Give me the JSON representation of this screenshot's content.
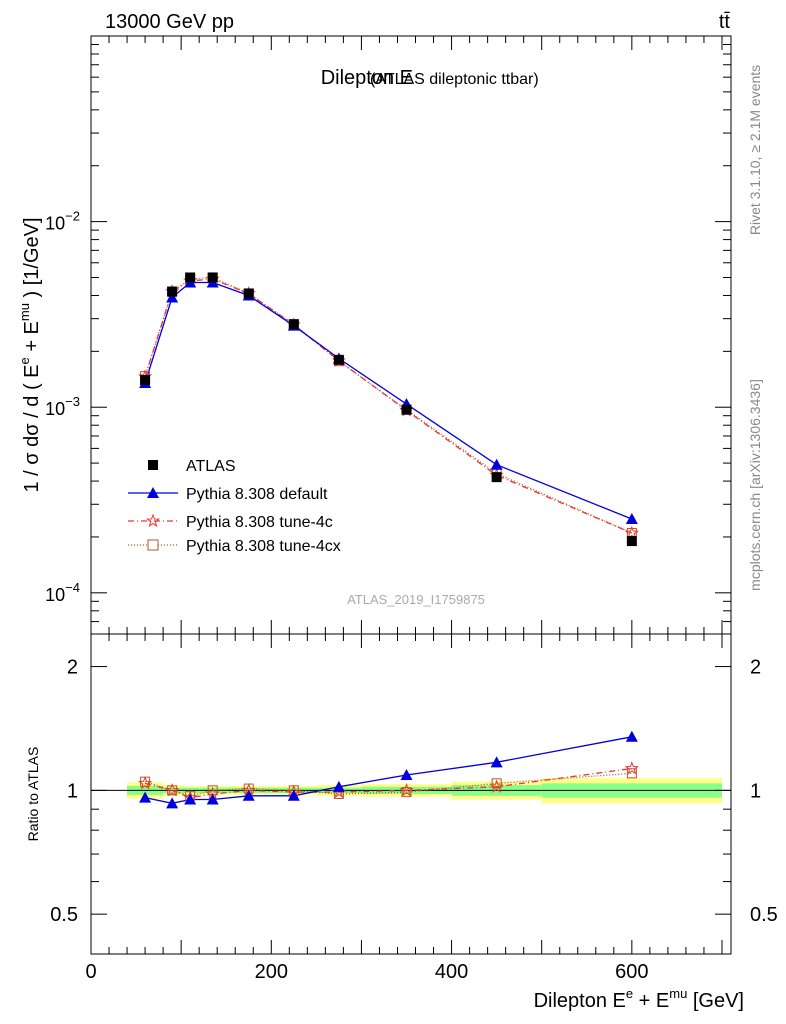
{
  "header": {
    "energy_label": "13000 GeV pp",
    "process_label": "tt̄"
  },
  "plot_title": {
    "main": "Dilepton E",
    "sub": "(ATLAS dileptonic ttbar)"
  },
  "side_labels": {
    "rivet": "Rivet 3.1.10, ≥ 2.1M events",
    "mcplots": "mcplots.cern.ch [arXiv:1306.3436]"
  },
  "watermark": "ATLAS_2019_I1759875",
  "colors": {
    "atlas": "#000000",
    "default": "#0000dd",
    "tune4c": "#ee3333",
    "tune4cx": "#bb5522",
    "band_inner": "#88ff88",
    "band_outer": "#ffff88"
  },
  "chart_data": [
    {
      "type": "line",
      "panel": "main",
      "ylabel_parts": {
        "a": "1 / σ  dσ / d ( E",
        "sup1": "e",
        "b": " + E",
        "sup2": "mu",
        "c": " ) [1/GeV]"
      },
      "xlim": [
        0,
        710
      ],
      "ylim": [
        6e-05,
        0.1
      ],
      "log_y": true,
      "y_ticks": [
        {
          "value": 0.01,
          "base": "10",
          "exp": "−2"
        },
        {
          "value": 0.001,
          "base": "10",
          "exp": "−3"
        },
        {
          "value": 0.0001,
          "base": "10",
          "exp": "−4"
        }
      ],
      "legend_position": "bottom-left",
      "x": [
        60,
        90,
        110,
        135,
        175,
        225,
        275,
        350,
        450,
        600
      ],
      "series": [
        {
          "name": "ATLAS",
          "key": "atlas",
          "marker": "square-filled",
          "values": [
            0.0014,
            0.0042,
            0.005,
            0.005,
            0.0041,
            0.0028,
            0.0018,
            0.00097,
            0.00042,
            0.00019
          ]
        },
        {
          "name": "Pythia 8.308 default",
          "key": "default",
          "marker": "triangle",
          "values": [
            0.00135,
            0.0039,
            0.0047,
            0.0047,
            0.004,
            0.00275,
            0.00183,
            0.00104,
            0.00049,
            0.00025
          ]
        },
        {
          "name": "Pythia 8.308 tune-4c",
          "key": "tune4c",
          "marker": "star",
          "values": [
            0.00146,
            0.0042,
            0.0048,
            0.0049,
            0.0041,
            0.00278,
            0.00178,
            0.00096,
            0.00043,
            0.00021
          ]
        },
        {
          "name": "Pythia 8.308 tune-4cx",
          "key": "tune4cx",
          "marker": "square-open",
          "values": [
            0.00147,
            0.0042,
            0.0049,
            0.005,
            0.0041,
            0.0028,
            0.00177,
            0.00097,
            0.00044,
            0.00021
          ]
        }
      ]
    },
    {
      "type": "line",
      "panel": "ratio",
      "ylabel": "Ratio to ATLAS",
      "xlabel_parts": {
        "a": "Dilepton E",
        "sup1": "e",
        "b": " + E",
        "sup2": "mu",
        "c": " [GeV]"
      },
      "xlim": [
        0,
        710
      ],
      "ylim": [
        0.4,
        2.4
      ],
      "log_y": true,
      "x_ticks": [
        0,
        200,
        400,
        600
      ],
      "y_ticks": [
        0.5,
        1,
        2
      ],
      "x": [
        60,
        90,
        110,
        135,
        175,
        225,
        275,
        350,
        450,
        600
      ],
      "series": [
        {
          "name": "Pythia 8.308 default",
          "key": "default",
          "marker": "triangle",
          "values": [
            0.96,
            0.93,
            0.95,
            0.95,
            0.97,
            0.97,
            1.02,
            1.09,
            1.17,
            1.35
          ]
        },
        {
          "name": "Pythia 8.308 tune-4c",
          "key": "tune4c",
          "marker": "star",
          "values": [
            1.04,
            1.0,
            0.96,
            0.98,
            1.0,
            0.99,
            0.99,
            1.0,
            1.02,
            1.13
          ]
        },
        {
          "name": "Pythia 8.308 tune-4cx",
          "key": "tune4cx",
          "marker": "square-open",
          "values": [
            1.05,
            1.0,
            0.97,
            1.0,
            1.01,
            1.0,
            0.98,
            0.99,
            1.04,
            1.1
          ]
        }
      ],
      "uncertainty_bins": [
        {
          "lo": 40,
          "hi": 80,
          "inner": [
            0.975,
            1.025
          ],
          "outer": [
            0.955,
            1.045
          ]
        },
        {
          "lo": 80,
          "hi": 100,
          "inner": [
            0.985,
            1.015
          ],
          "outer": [
            0.97,
            1.03
          ]
        },
        {
          "lo": 100,
          "hi": 120,
          "inner": [
            0.985,
            1.015
          ],
          "outer": [
            0.975,
            1.025
          ]
        },
        {
          "lo": 120,
          "hi": 150,
          "inner": [
            0.985,
            1.015
          ],
          "outer": [
            0.975,
            1.025
          ]
        },
        {
          "lo": 150,
          "hi": 200,
          "inner": [
            0.985,
            1.015
          ],
          "outer": [
            0.975,
            1.025
          ]
        },
        {
          "lo": 200,
          "hi": 250,
          "inner": [
            0.985,
            1.015
          ],
          "outer": [
            0.975,
            1.025
          ]
        },
        {
          "lo": 250,
          "hi": 300,
          "inner": [
            0.985,
            1.015
          ],
          "outer": [
            0.97,
            1.03
          ]
        },
        {
          "lo": 300,
          "hi": 400,
          "inner": [
            0.98,
            1.02
          ],
          "outer": [
            0.965,
            1.035
          ]
        },
        {
          "lo": 400,
          "hi": 500,
          "inner": [
            0.97,
            1.03
          ],
          "outer": [
            0.95,
            1.05
          ]
        },
        {
          "lo": 500,
          "hi": 700,
          "inner": [
            0.96,
            1.04
          ],
          "outer": [
            0.93,
            1.07
          ]
        }
      ]
    }
  ]
}
